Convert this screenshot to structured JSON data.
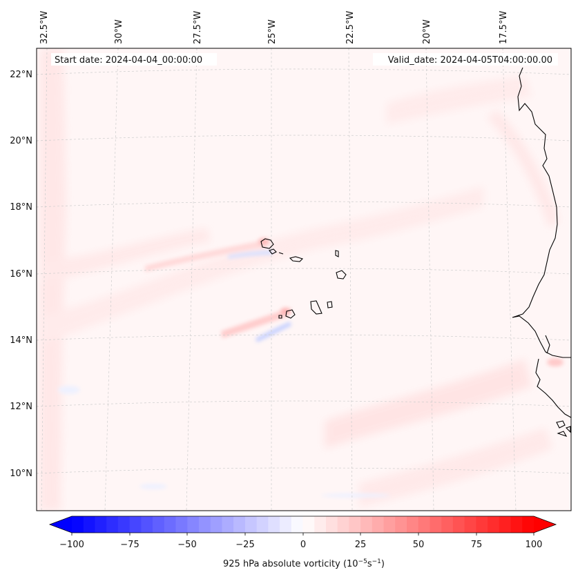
{
  "header": {
    "start_date": "Start date: 2024-04-04_00:00:00",
    "valid_date": "Valid_date: 2024-04-05T04:00:00.00"
  },
  "map": {
    "longitude_labels": [
      "32.5°W",
      "30°W",
      "27.5°W",
      "25°W",
      "22.5°W",
      "20°W",
      "17.5°W"
    ],
    "latitude_labels": [
      "22°N",
      "20°N",
      "18°N",
      "16°N",
      "14°N",
      "12°N",
      "10°N"
    ],
    "field_colors": {
      "background": "#fff6f6",
      "weak_positive": "#ffe9e9",
      "moderate_positive": "#ffd6d6",
      "weak_negative": "#eef2ff"
    },
    "coastline_color": "#000000",
    "gridline_color": "#cccccc"
  },
  "colorbar": {
    "ticks": [
      "−100",
      "−75",
      "−50",
      "−25",
      "0",
      "25",
      "50",
      "75",
      "100"
    ],
    "label": "925 hPa absolute vorticity (10",
    "label_exp1": "−5",
    "label_mid": "s",
    "label_exp2": "−1",
    "label_end": ")",
    "colors": {
      "min": "#0000ff",
      "mid": "#ffffff",
      "max": "#ff0000"
    }
  }
}
